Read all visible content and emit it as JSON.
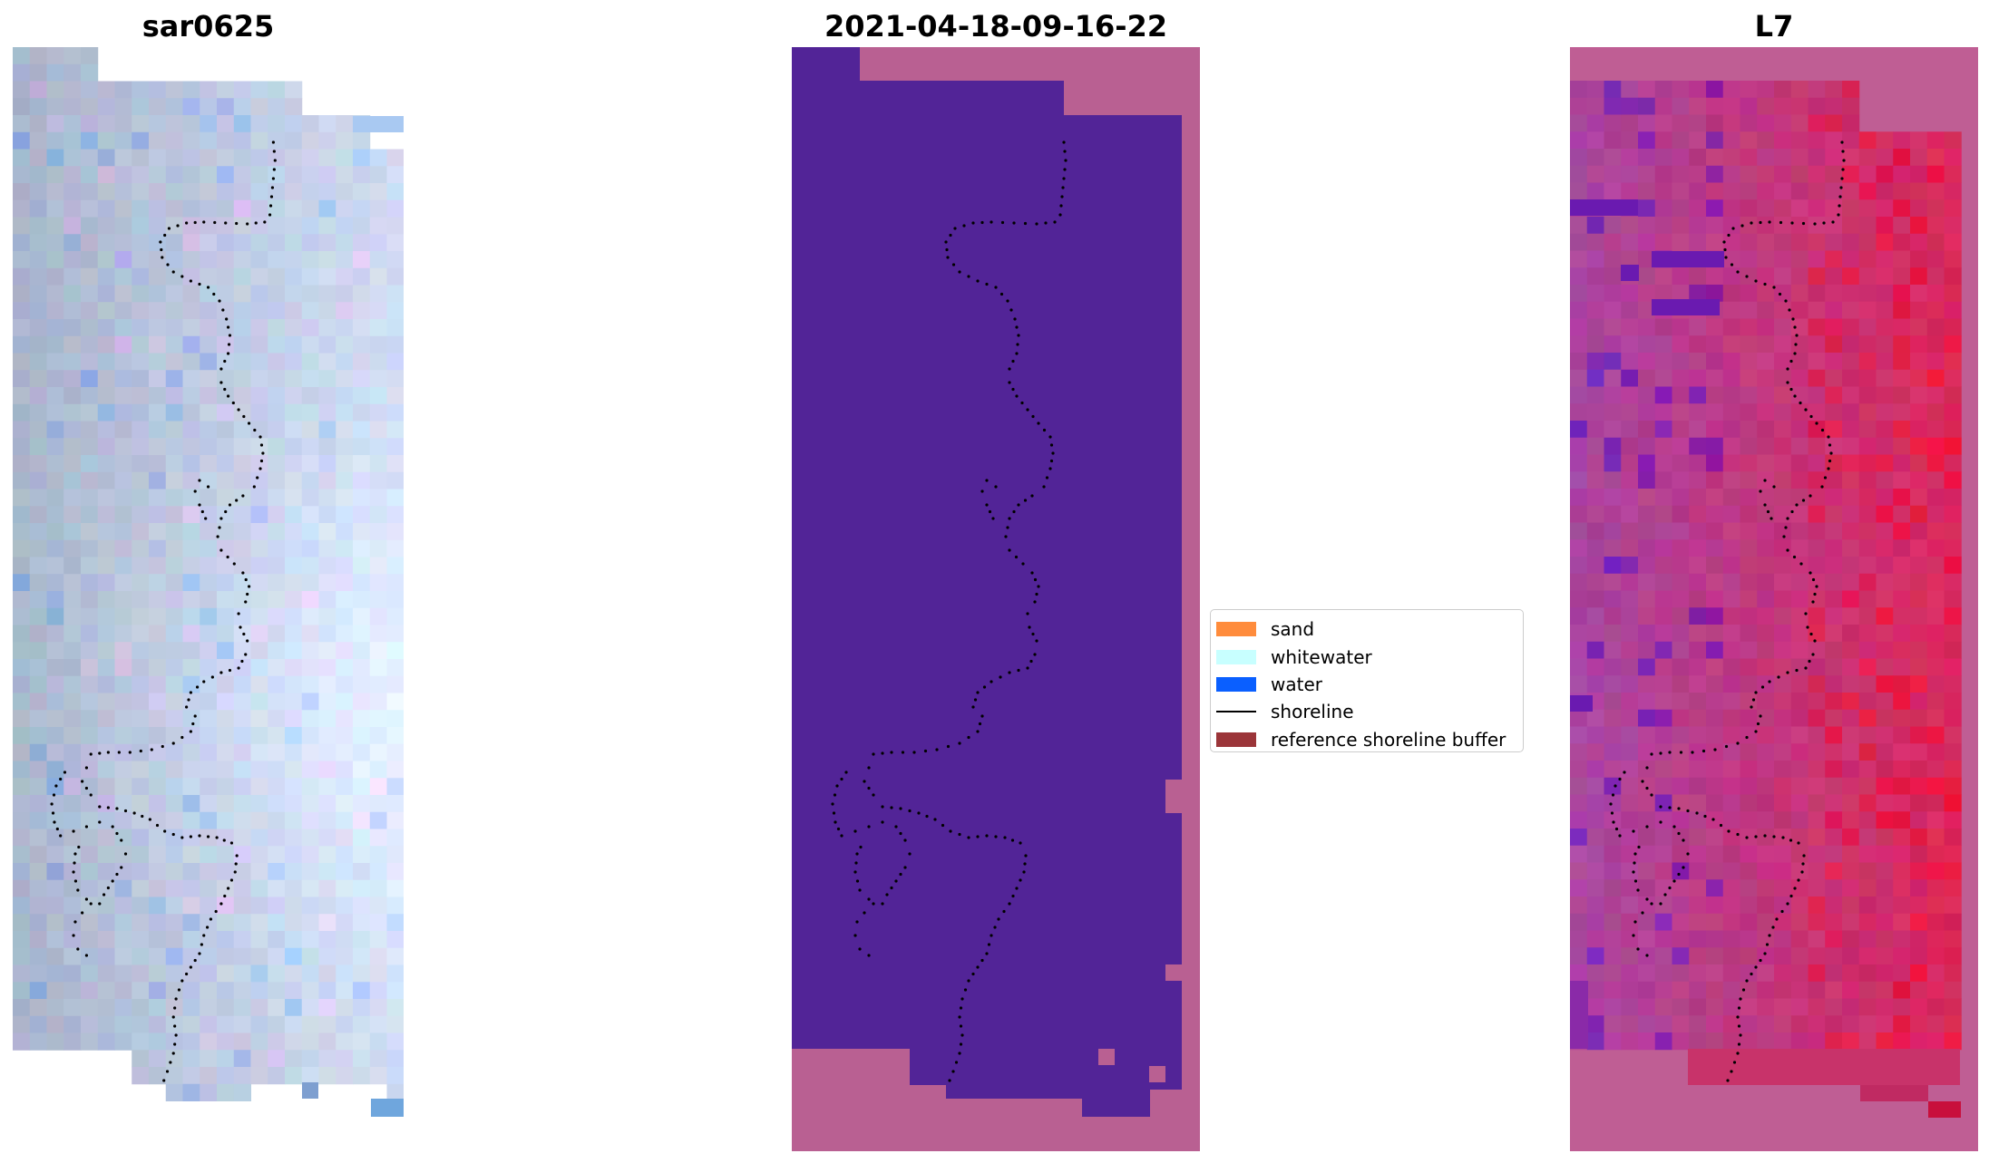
{
  "panels": [
    {
      "id": "rgb",
      "title": "sar0625"
    },
    {
      "id": "classified",
      "title": "2021-04-18-09-16-22"
    },
    {
      "id": "index",
      "title": "L7"
    }
  ],
  "legend": {
    "items": [
      {
        "label": "sand",
        "type": "patch",
        "color": "#ff8c3c"
      },
      {
        "label": "whitewater",
        "type": "patch",
        "color": "#c8ffff"
      },
      {
        "label": "water",
        "type": "patch",
        "color": "#0a5fff"
      },
      {
        "label": "shoreline",
        "type": "line",
        "color": "#000000"
      },
      {
        "label": "reference shoreline buffer",
        "type": "patch",
        "color": "#9b3539"
      }
    ]
  },
  "colors": {
    "classified_water": "#522497",
    "buffer_overlay": "#b96092",
    "shoreline_points": "#000000"
  }
}
